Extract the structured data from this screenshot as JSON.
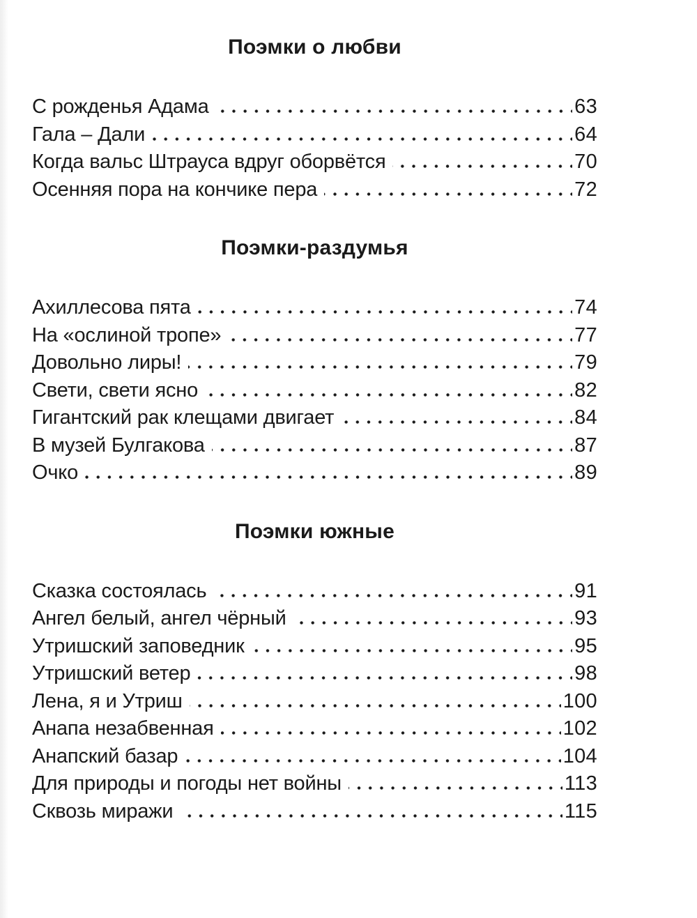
{
  "page": {
    "background": "#ffffff",
    "text_color": "#1a1a1a",
    "kind": "book-table-of-contents"
  },
  "sections": [
    {
      "title": "Поэмки о любви",
      "entries": [
        {
          "title": "С рожденья Адама",
          "page": "63"
        },
        {
          "title": "Гала – Дали",
          "page": "64"
        },
        {
          "title": "Когда вальс Штрауса вдруг оборвётся",
          "page": "70"
        },
        {
          "title": "Осенняя пора на кончике пера",
          "page": "72"
        }
      ]
    },
    {
      "title": "Поэмки-раздумья",
      "entries": [
        {
          "title": "Ахиллесова пята",
          "page": "74"
        },
        {
          "title": "На «ослиной тропе»",
          "page": "77"
        },
        {
          "title": "Довольно лиры!",
          "page": "79"
        },
        {
          "title": "Свети, свети ясно",
          "page": "82"
        },
        {
          "title": "Гигантский рак клещами двигает",
          "page": "84"
        },
        {
          "title": "В музей Булгакова",
          "page": "87"
        },
        {
          "title": "Очко",
          "page": "89"
        }
      ]
    },
    {
      "title": "Поэмки южные",
      "entries": [
        {
          "title": "Сказка состоялась",
          "page": "91"
        },
        {
          "title": "Ангел белый, ангел чёрный",
          "page": "93"
        },
        {
          "title": "Утришский заповедник",
          "page": "95"
        },
        {
          "title": "Утришский ветер",
          "page": "98"
        },
        {
          "title": "Лена, я и Утриш",
          "page": "100"
        },
        {
          "title": "Анапа незабвенная",
          "page": "102"
        },
        {
          "title": "Анапский базар",
          "page": "104"
        },
        {
          "title": "Для природы и погоды нет войны",
          "page": "113"
        },
        {
          "title": "Сквозь миражи",
          "page": "115"
        }
      ]
    }
  ]
}
